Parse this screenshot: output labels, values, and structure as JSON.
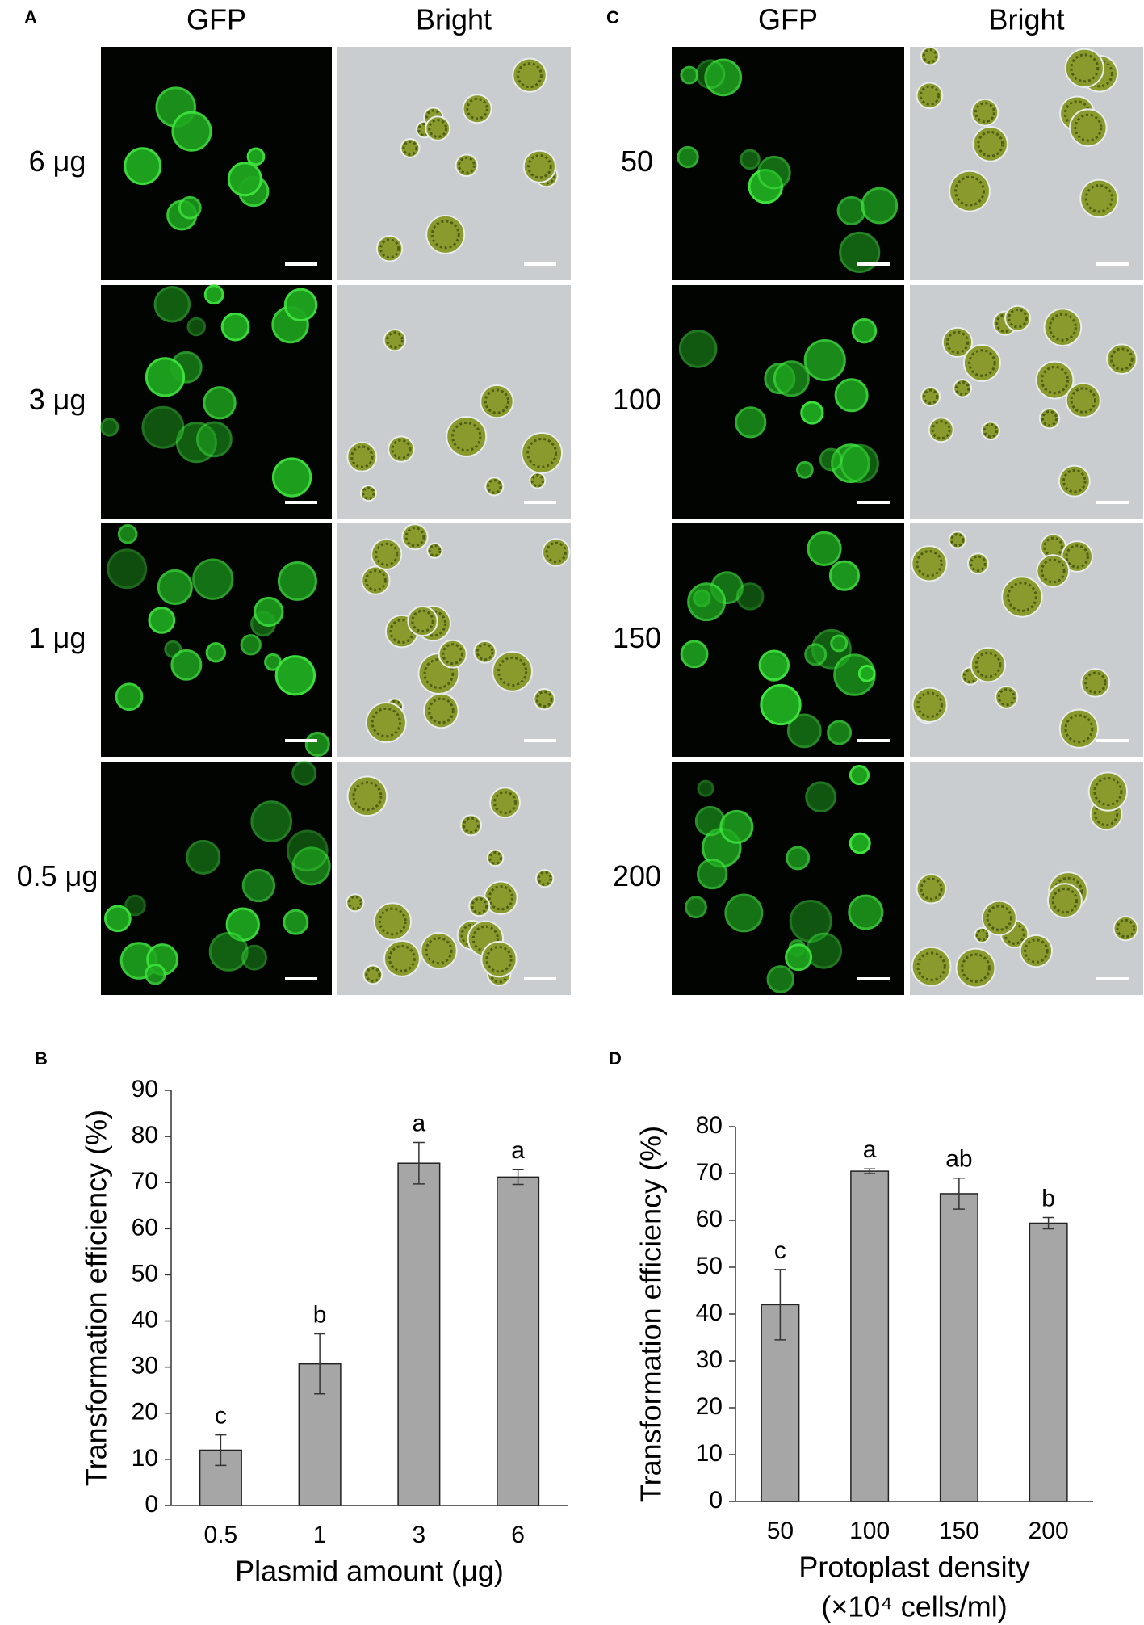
{
  "micrographs": [
    {
      "letter": "A",
      "columns": [
        "GFP",
        "Bright"
      ],
      "rows": [
        "6 μg",
        "3 μg",
        "1 μg",
        "0.5 μg"
      ]
    },
    {
      "letter": "C",
      "columns": [
        "GFP",
        "Bright"
      ],
      "rows": [
        "50",
        "100",
        "150",
        "200"
      ]
    }
  ],
  "chart_data": [
    {
      "type": "bar",
      "letter": "B",
      "ylabel": "Transformation efficiency (%)",
      "xlabel": [
        "Plasmid amount (μg)"
      ],
      "categories": [
        "0.5",
        "1",
        "3",
        "6"
      ],
      "values": [
        12,
        30.7,
        74.2,
        71.2
      ],
      "errors": [
        3.3,
        6.5,
        4.5,
        1.6
      ],
      "annotations": [
        "c",
        "b",
        "a",
        "a"
      ],
      "color": "#a6a6a6",
      "ylim": [
        0,
        90
      ],
      "yticks": [
        0,
        10,
        20,
        30,
        40,
        50,
        60,
        70,
        80,
        90
      ],
      "grid": false
    },
    {
      "type": "bar",
      "letter": "D",
      "ylabel": "Transformation efficiency (%)",
      "xlabel": [
        "Protoplast density",
        "(×10⁴ cells/ml)"
      ],
      "categories": [
        "50",
        "100",
        "150",
        "200"
      ],
      "values": [
        42,
        70.5,
        65.7,
        59.4
      ],
      "errors": [
        7.5,
        0.5,
        3.3,
        1.2
      ],
      "annotations": [
        "c",
        "a",
        "ab",
        "b"
      ],
      "color": "#a6a6a6",
      "ylim": [
        0,
        80
      ],
      "yticks": [
        0,
        10,
        20,
        30,
        40,
        50,
        60,
        70,
        80
      ],
      "grid": false
    }
  ]
}
